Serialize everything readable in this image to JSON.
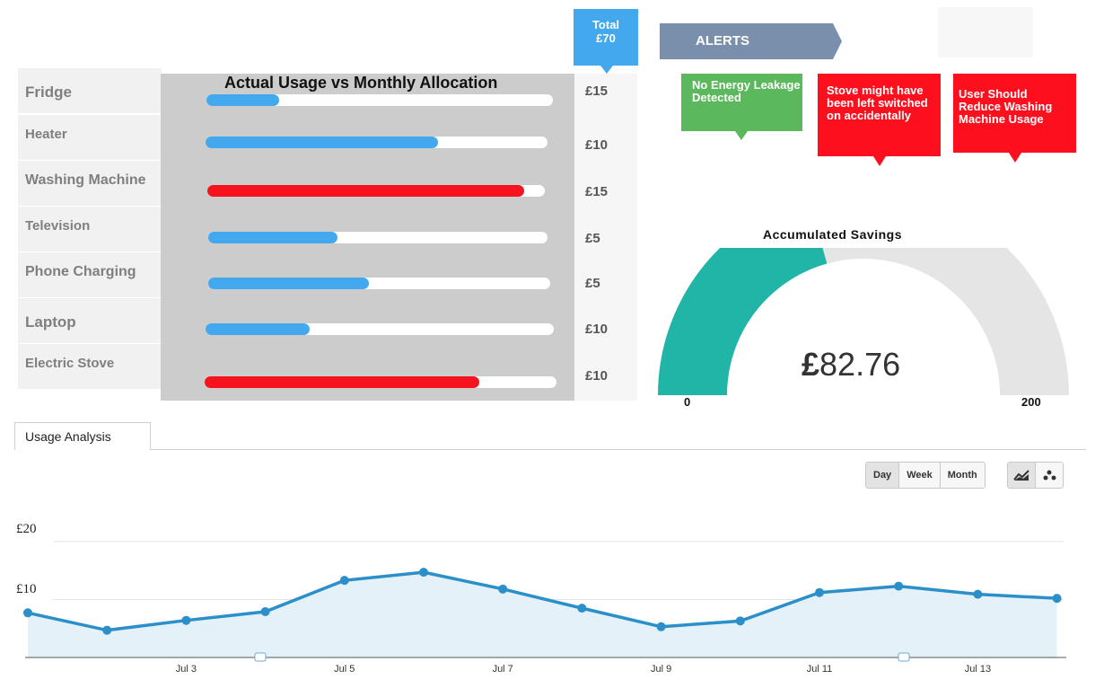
{
  "allocation_panel": {
    "title": "Actual Usage vs Monthly Allocation",
    "items": [
      {
        "label": "Fridge",
        "cost": "£15",
        "usage_fraction": 0.21,
        "status": "normal"
      },
      {
        "label": "Heater",
        "cost": "£10",
        "usage_fraction": 0.68,
        "status": "normal"
      },
      {
        "label": "Washing Machine",
        "cost": "£15",
        "usage_fraction": 0.94,
        "status": "over"
      },
      {
        "label": "Television",
        "cost": "£5",
        "usage_fraction": 0.38,
        "status": "normal"
      },
      {
        "label": "Phone Charging",
        "cost": "£5",
        "usage_fraction": 0.47,
        "status": "normal"
      },
      {
        "label": "Laptop",
        "cost": "£10",
        "usage_fraction": 0.3,
        "status": "normal"
      },
      {
        "label": "Electric Stove",
        "cost": "£10",
        "usage_fraction": 0.78,
        "status": "over"
      }
    ]
  },
  "total": {
    "label": "Total",
    "value": "£70"
  },
  "alerts": {
    "title": "ALERTS",
    "items": [
      {
        "text": "No Energy Leakage Detected",
        "type": "ok"
      },
      {
        "text": "Stove might have been left switched on accidentally",
        "type": "warning"
      },
      {
        "text": "User Should Reduce Washing Machine Usage",
        "type": "warning"
      }
    ]
  },
  "savings": {
    "title": "Accumulated Savings",
    "currency": "£",
    "value": "82.76",
    "min": "0",
    "max": "200",
    "amount": 82.76
  },
  "analysis": {
    "tab_label": "Usage Analysis",
    "range_buttons": [
      "Day",
      "Week",
      "Month"
    ],
    "active_range": "Day",
    "chart_types": [
      "line-chart-icon",
      "scatter-chart-icon"
    ]
  },
  "colors": {
    "bar_normal": "#44a8ee",
    "bar_over": "#f5131d",
    "alert_ok": "#5cb85c",
    "alert_warning": "#fe0f1e",
    "gauge_fill": "#20b5a6",
    "gauge_track": "#e5e5e5",
    "line": "#2b8fc9",
    "area": "#e4f1f9"
  },
  "chart_data": {
    "type": "area",
    "x": [
      "Jul 1",
      "Jul 2",
      "Jul 3",
      "Jul 4",
      "Jul 5",
      "Jul 6",
      "Jul 7",
      "Jul 8",
      "Jul 9",
      "Jul 10",
      "Jul 11",
      "Jul 12",
      "Jul 13",
      "Jul 14"
    ],
    "x_tick_labels": [
      "Jul 3",
      "Jul 5",
      "Jul 7",
      "Jul 9",
      "Jul 11",
      "Jul 13"
    ],
    "series": [
      {
        "values": [
          7.7,
          4.7,
          6.4,
          7.9,
          13.3,
          14.7,
          11.8,
          8.5,
          5.3,
          6.3,
          11.2,
          12.3,
          10.9,
          10.2
        ]
      }
    ],
    "y_ticks": [
      "£10",
      "£20"
    ],
    "ylim": [
      0,
      22
    ],
    "grid": true
  }
}
